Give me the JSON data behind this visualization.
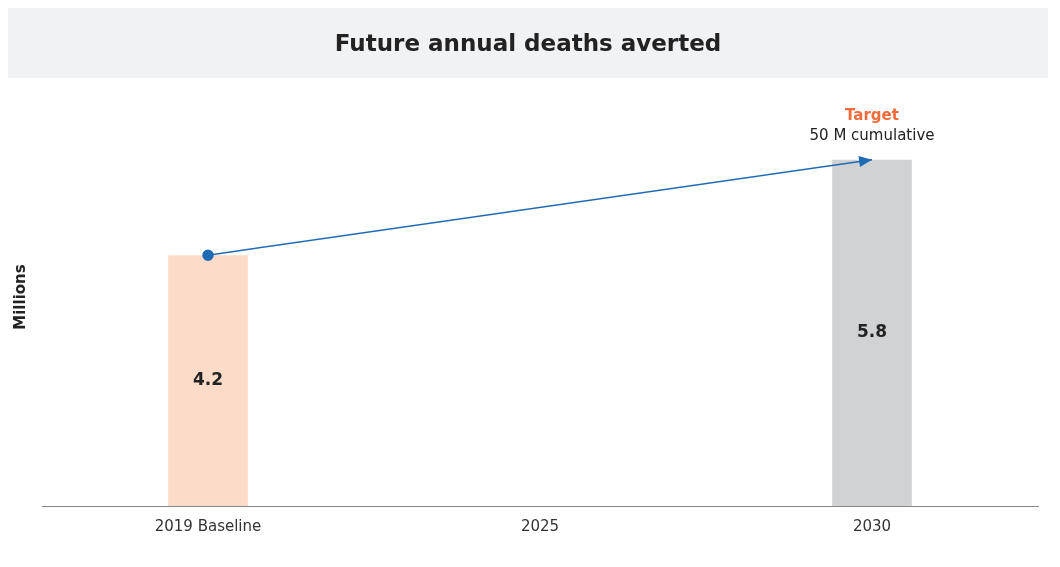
{
  "chart_data": {
    "type": "bar",
    "title": "Future annual deaths averted",
    "ylabel": "Millions",
    "categories": [
      "2019 Baseline",
      "2025",
      "2030"
    ],
    "series": [
      {
        "values": [
          4.2,
          null,
          5.8
        ],
        "colors": [
          "#fcdcc8",
          "#d1d2d4",
          "#d1d2d4"
        ],
        "value_labels": [
          "4.2",
          null,
          "5.8"
        ]
      },
      {
        "type": "line",
        "values": [
          4.2,
          null,
          5.8
        ],
        "color": "#1f6ab5",
        "marker": "circle"
      }
    ],
    "legend": false,
    "grid": false,
    "annotations": [
      {
        "text": "Target",
        "x": "2030",
        "y": 5.8
      },
      {
        "text": "50 M cumulative",
        "x": "2030",
        "y": 5.8
      }
    ]
  }
}
